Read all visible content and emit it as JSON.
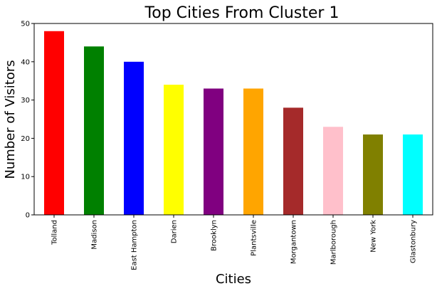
{
  "chart_data": {
    "type": "bar",
    "title": "Top Cities From Cluster 1",
    "xlabel": "Cities",
    "ylabel": "Number of Visitors",
    "categories": [
      "Tolland",
      "Madison",
      "East Hampton",
      "Darien",
      "Brooklyn",
      "Plantsville",
      "Morgantown",
      "Marlborough",
      "New York",
      "Glastonbury"
    ],
    "values": [
      48,
      44,
      40,
      34,
      33,
      33,
      28,
      23,
      21,
      21
    ],
    "colors": [
      "#ff0000",
      "#008000",
      "#0000ff",
      "#ffff00",
      "#800080",
      "#ffa500",
      "#a52a2a",
      "#ffc0cb",
      "#808000",
      "#00ffff"
    ],
    "ylim": [
      0,
      50
    ],
    "yticks": [
      0,
      10,
      20,
      30,
      40,
      50
    ],
    "grid": false,
    "legend": "none"
  }
}
